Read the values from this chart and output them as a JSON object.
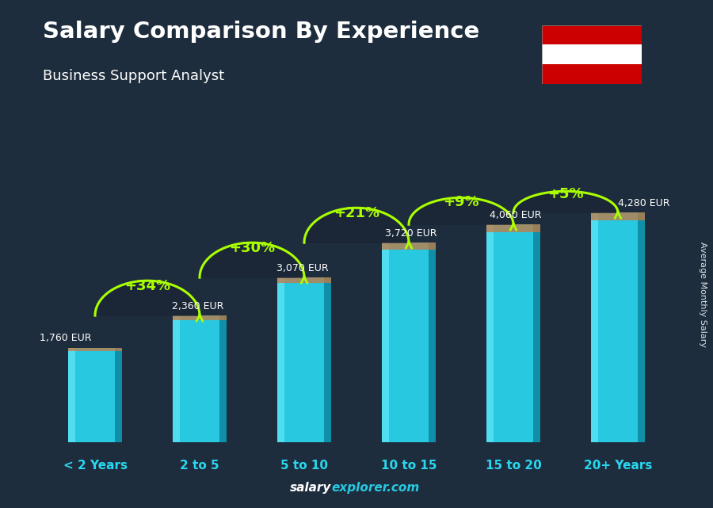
{
  "title": "Salary Comparison By Experience",
  "subtitle": "Business Support Analyst",
  "categories": [
    "< 2 Years",
    "2 to 5",
    "5 to 10",
    "10 to 15",
    "15 to 20",
    "20+ Years"
  ],
  "values": [
    1760,
    2360,
    3070,
    3720,
    4060,
    4280
  ],
  "labels": [
    "1,760 EUR",
    "2,360 EUR",
    "3,070 EUR",
    "3,720 EUR",
    "4,060 EUR",
    "4,280 EUR"
  ],
  "pct_changes": [
    "+34%",
    "+30%",
    "+21%",
    "+9%",
    "+5%"
  ],
  "bar_color_main": "#28c8e0",
  "bar_color_left": "#50ddf0",
  "bar_color_right": "#1090a8",
  "bar_color_cap": "#c87840",
  "bg_color": "#1e2d3d",
  "title_color": "#ffffff",
  "subtitle_color": "#ffffff",
  "label_color": "#ffffff",
  "pct_color": "#aaff00",
  "cat_color": "#28d8f0",
  "watermark_bold": "salary",
  "watermark_rest": "explorer.com",
  "right_label": "Average Monthly Salary",
  "ylim": [
    0,
    5500
  ],
  "bar_width": 0.52,
  "arc_bg_color": "#1a2535"
}
